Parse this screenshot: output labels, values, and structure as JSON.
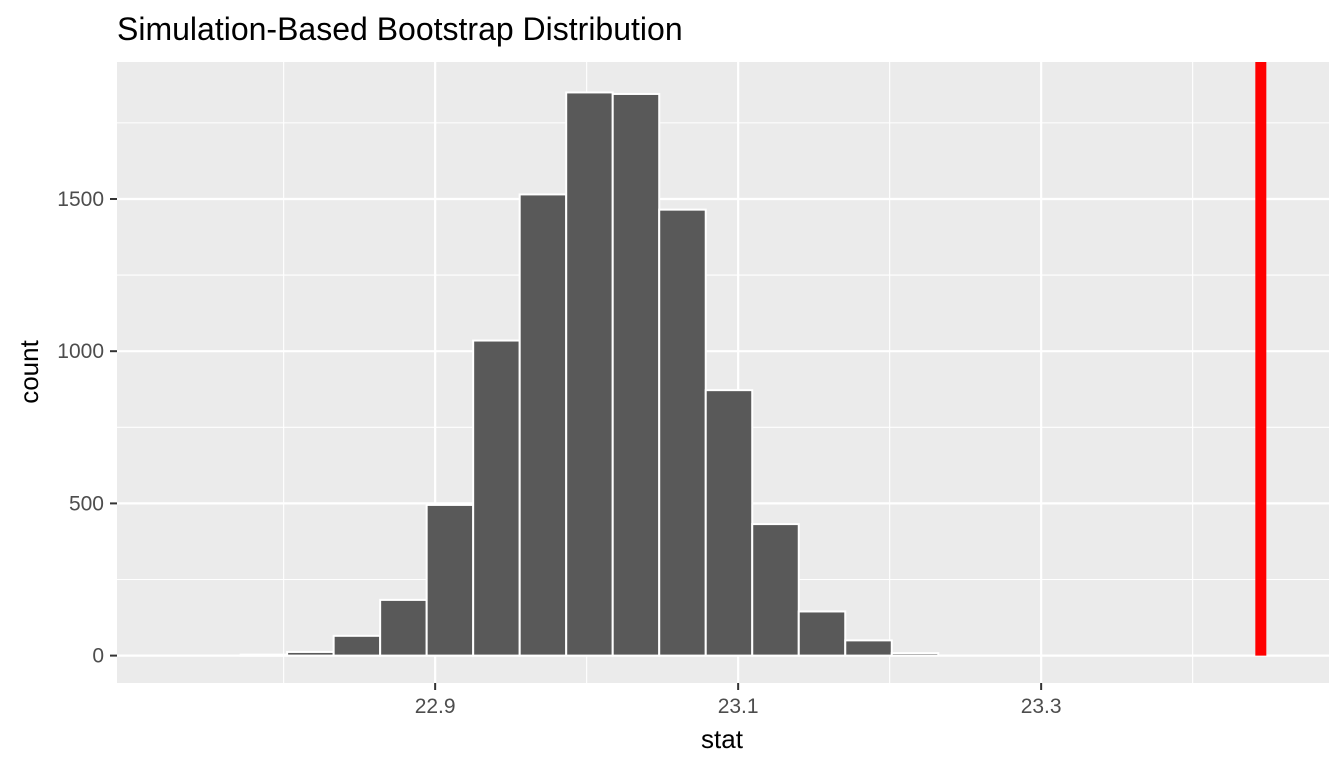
{
  "chart_data": {
    "type": "bar",
    "title": "Simulation-Based Bootstrap Distribution",
    "xlabel": "stat",
    "ylabel": "count",
    "bin_width": 0.0307,
    "bins": [
      {
        "start": 22.7716,
        "end": 22.8023,
        "count": 3
      },
      {
        "start": 22.8023,
        "end": 22.833,
        "count": 12
      },
      {
        "start": 22.833,
        "end": 22.8637,
        "count": 65
      },
      {
        "start": 22.8637,
        "end": 22.8944,
        "count": 183
      },
      {
        "start": 22.8944,
        "end": 22.9251,
        "count": 495
      },
      {
        "start": 22.9251,
        "end": 22.9558,
        "count": 1035
      },
      {
        "start": 22.9558,
        "end": 22.9865,
        "count": 1515
      },
      {
        "start": 22.9865,
        "end": 23.0172,
        "count": 1850
      },
      {
        "start": 23.0172,
        "end": 23.0479,
        "count": 1845
      },
      {
        "start": 23.0479,
        "end": 23.0786,
        "count": 1465
      },
      {
        "start": 23.0786,
        "end": 23.1093,
        "count": 872
      },
      {
        "start": 23.1093,
        "end": 23.14,
        "count": 432
      },
      {
        "start": 23.14,
        "end": 23.1707,
        "count": 145
      },
      {
        "start": 23.1707,
        "end": 23.2014,
        "count": 50
      },
      {
        "start": 23.2014,
        "end": 23.2321,
        "count": 8
      }
    ],
    "vline": {
      "x": 23.445,
      "color": "#ff0000"
    },
    "xlim": [
      22.69,
      23.49
    ],
    "ylim": [
      -90,
      1950
    ],
    "x_ticks": [
      22.9,
      23.1,
      23.3
    ],
    "x_tick_labels": [
      "22.9",
      "23.1",
      "23.3"
    ],
    "y_ticks": [
      0,
      500,
      1000,
      1500
    ],
    "y_tick_labels": [
      "0",
      "500",
      "1000",
      "1500"
    ],
    "bar_color": "#595959",
    "panel_color": "#ebebeb",
    "grid": true
  }
}
